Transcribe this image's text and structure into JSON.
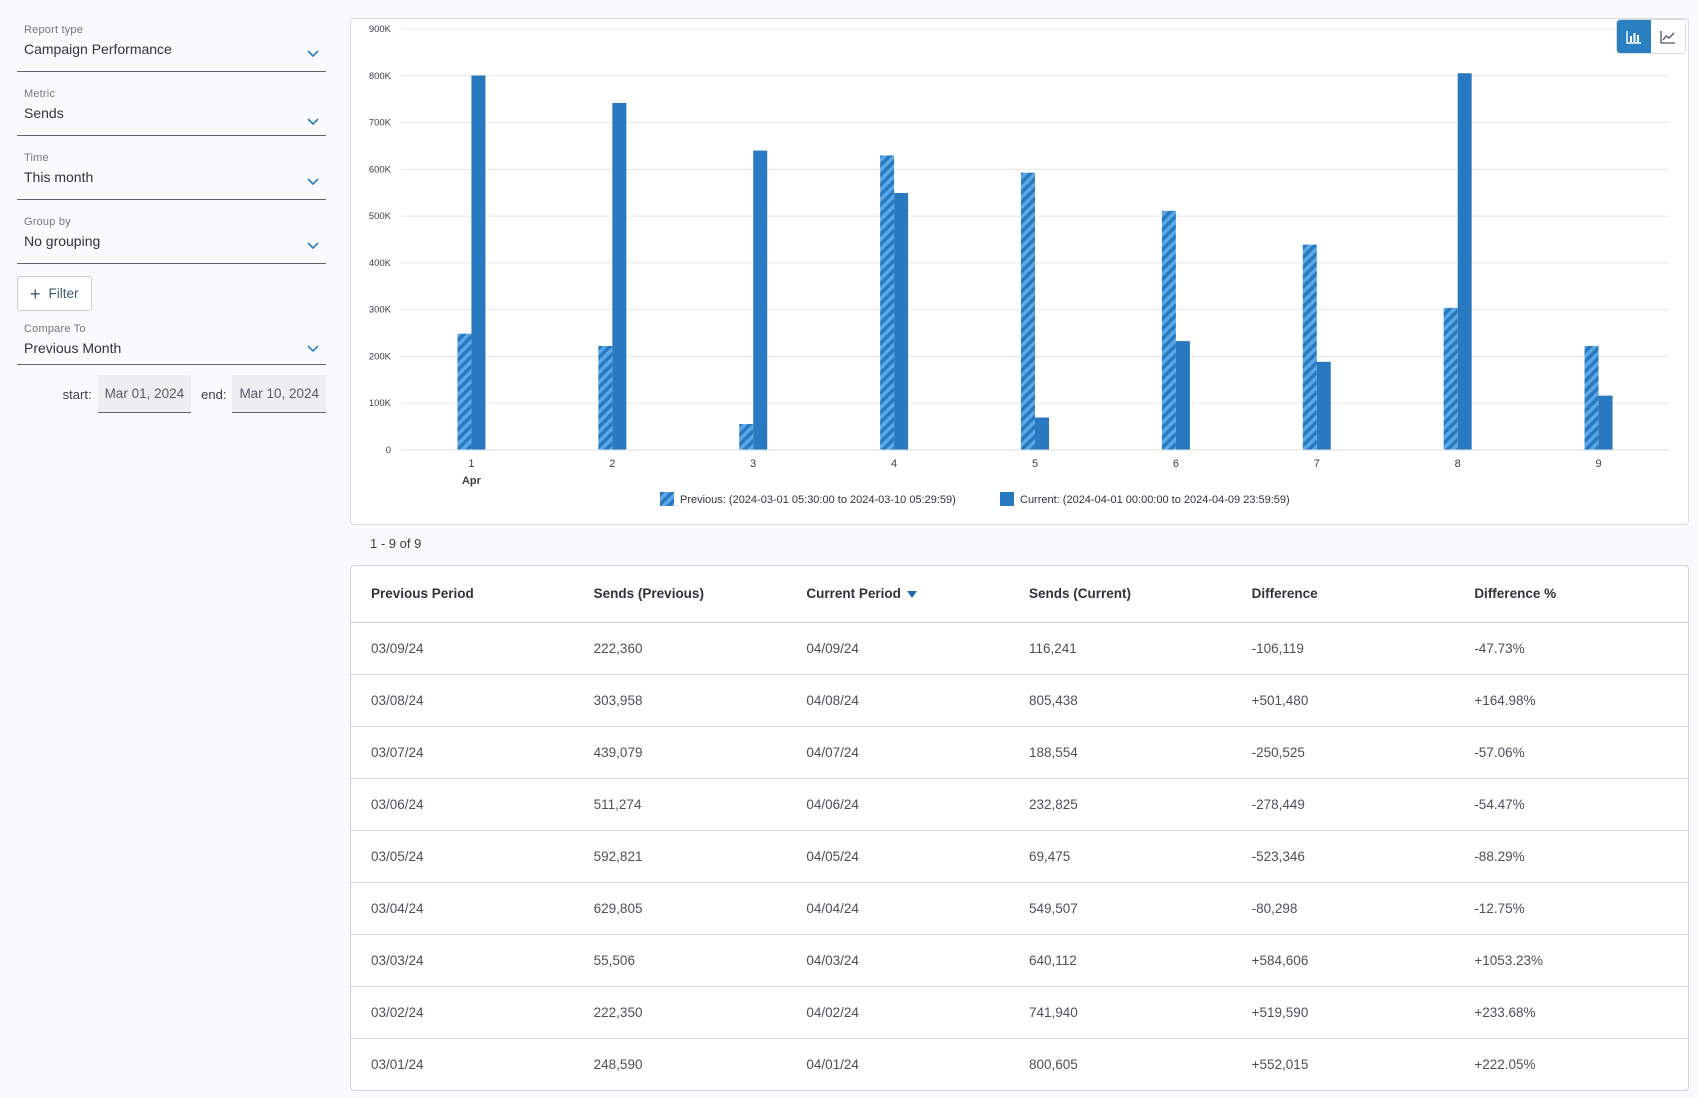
{
  "sidebar": {
    "report_type": {
      "label": "Report type",
      "value": "Campaign Performance"
    },
    "metric": {
      "label": "Metric",
      "value": "Sends"
    },
    "time": {
      "label": "Time",
      "value": "This month"
    },
    "group_by": {
      "label": "Group by",
      "value": "No grouping"
    },
    "filter_label": "Filter",
    "compare_to": {
      "label": "Compare To",
      "value": "Previous Month"
    },
    "start_label": "start:",
    "start_value": "Mar 01, 2024",
    "end_label": "end:",
    "end_value": "Mar 10, 2024"
  },
  "chart_toggle": {
    "bar_icon": "bar-chart-icon",
    "line_icon": "line-chart-icon",
    "active": "bar"
  },
  "colors": {
    "accent": "#2a7fc0",
    "bar_current": "#2879bf",
    "bar_previous_light": "#5aa9e6"
  },
  "chart_data": {
    "type": "bar",
    "categories": [
      "1",
      "2",
      "3",
      "4",
      "5",
      "6",
      "7",
      "8",
      "9"
    ],
    "category_sublabel": {
      "index": 0,
      "text": "Apr"
    },
    "yticks": [
      "0",
      "100K",
      "200K",
      "300K",
      "400K",
      "500K",
      "600K",
      "700K",
      "800K",
      "900K"
    ],
    "ylim": [
      0,
      900000
    ],
    "grid": true,
    "legend_placement": "bottom-center",
    "series": [
      {
        "name": "Previous: (2024-03-01 05:30:00 to 2024-03-10 05:29:59)",
        "pattern": "hatched",
        "values": [
          248590,
          222350,
          55506,
          629805,
          592821,
          511274,
          439079,
          303958,
          222360
        ]
      },
      {
        "name": "Current: (2024-04-01 00:00:00 to 2024-04-09 23:59:59)",
        "pattern": "solid",
        "values": [
          800605,
          741940,
          640112,
          549507,
          69475,
          232825,
          188554,
          805438,
          116241
        ]
      }
    ]
  },
  "pagination": {
    "text": "1 - 9 of 9"
  },
  "table": {
    "headers": [
      "Previous Period",
      "Sends (Previous)",
      "Current Period",
      "Sends (Current)",
      "Difference",
      "Difference %"
    ],
    "sorted_column": 2,
    "rows": [
      [
        "03/09/24",
        "222,360",
        "04/09/24",
        "116,241",
        "-106,119",
        "-47.73%"
      ],
      [
        "03/08/24",
        "303,958",
        "04/08/24",
        "805,438",
        "+501,480",
        "+164.98%"
      ],
      [
        "03/07/24",
        "439,079",
        "04/07/24",
        "188,554",
        "-250,525",
        "-57.06%"
      ],
      [
        "03/06/24",
        "511,274",
        "04/06/24",
        "232,825",
        "-278,449",
        "-54.47%"
      ],
      [
        "03/05/24",
        "592,821",
        "04/05/24",
        "69,475",
        "-523,346",
        "-88.29%"
      ],
      [
        "03/04/24",
        "629,805",
        "04/04/24",
        "549,507",
        "-80,298",
        "-12.75%"
      ],
      [
        "03/03/24",
        "55,506",
        "04/03/24",
        "640,112",
        "+584,606",
        "+1053.23%"
      ],
      [
        "03/02/24",
        "222,350",
        "04/02/24",
        "741,940",
        "+519,590",
        "+233.68%"
      ],
      [
        "03/01/24",
        "248,590",
        "04/01/24",
        "800,605",
        "+552,015",
        "+222.05%"
      ]
    ]
  }
}
